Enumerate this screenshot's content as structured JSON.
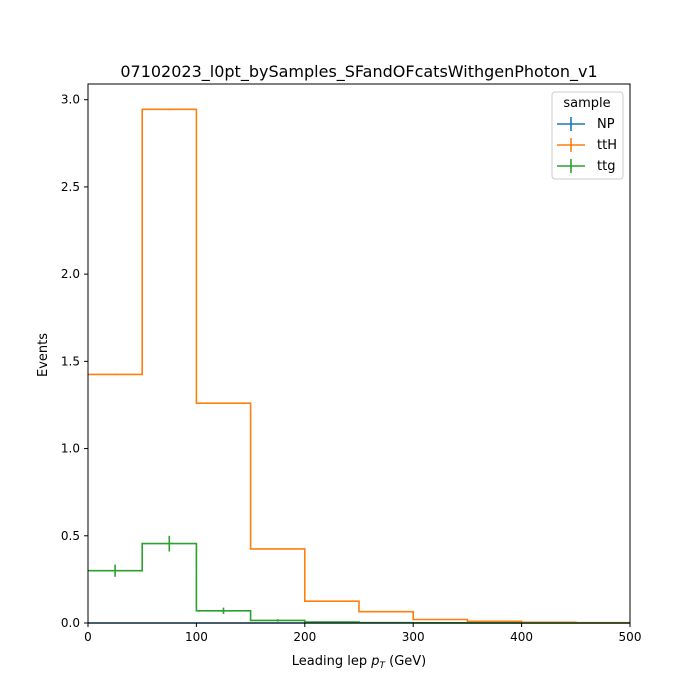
{
  "chart_data": {
    "type": "histogram-step",
    "title": "07102023_l0pt_bySamples_SFandOFcatsWithgenPhoton_v1",
    "xlabel": {
      "prefix": "Leading lep ",
      "symbol": "p",
      "subscript": "T",
      "suffix": " (GeV)"
    },
    "ylabel": "Events",
    "xlim": [
      0,
      500
    ],
    "ylim": [
      0,
      3.09
    ],
    "xticks": [
      0,
      100,
      200,
      300,
      400,
      500
    ],
    "xtick_labels": [
      "0",
      "100",
      "200",
      "300",
      "400",
      "500"
    ],
    "yticks": [
      0.0,
      0.5,
      1.0,
      1.5,
      2.0,
      2.5,
      3.0
    ],
    "ytick_labels": [
      "0.0",
      "0.5",
      "1.0",
      "1.5",
      "2.0",
      "2.5",
      "3.0"
    ],
    "bin_edges": [
      0,
      50,
      100,
      150,
      200,
      250,
      300,
      350,
      400,
      450,
      500
    ],
    "grid": false,
    "legend": {
      "title": "sample",
      "placement": "top-right"
    },
    "series": [
      {
        "name": "NP",
        "color": "#1f77b4",
        "values": [
          0,
          0,
          0,
          0,
          0,
          0,
          0,
          0,
          0,
          0
        ],
        "errors": [
          0,
          0,
          0,
          0,
          0,
          0,
          0,
          0,
          0,
          0
        ]
      },
      {
        "name": "ttH",
        "color": "#ff7f0e",
        "values": [
          1.425,
          2.945,
          1.26,
          0.425,
          0.125,
          0.065,
          0.02,
          0.01,
          0.004,
          0.002
        ],
        "errors": [
          0.004,
          0.005,
          0.003,
          0.002,
          0.001,
          0.001,
          0.0005,
          0.0005,
          0.0002,
          0.0001
        ]
      },
      {
        "name": "ttg",
        "color": "#2ca02c",
        "values": [
          0.3,
          0.455,
          0.07,
          0.015,
          0.005,
          0.002,
          0.001,
          0.0005,
          0.0002,
          0.0001
        ],
        "errors": [
          0.035,
          0.045,
          0.018,
          0.007,
          0.003,
          0.001,
          0.001,
          0.0005,
          0.0002,
          0.0001
        ]
      }
    ]
  }
}
